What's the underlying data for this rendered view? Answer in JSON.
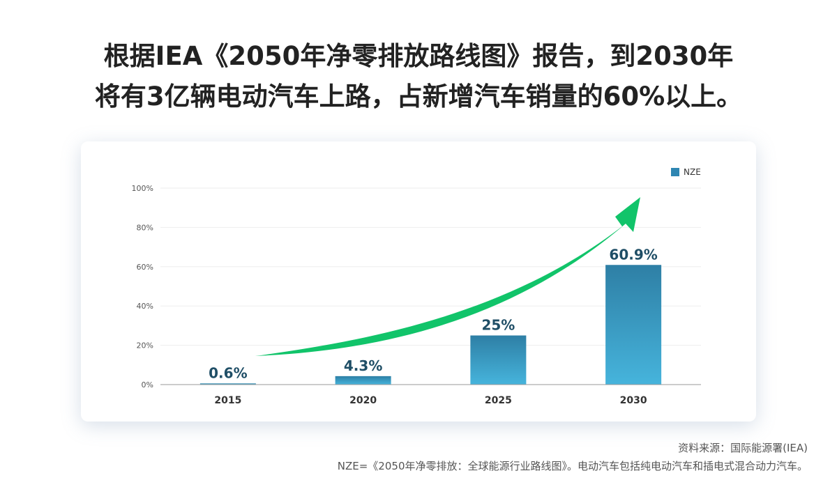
{
  "headline": {
    "line1": "根据IEA《2050年净零排放路线图》报告，到2030年",
    "line2": "将有3亿辆电动汽车上路，占新增汽车销量的60%以上。"
  },
  "chart_data": {
    "type": "bar",
    "categories": [
      "2015",
      "2020",
      "2025",
      "2030"
    ],
    "series": [
      {
        "name": "NZE",
        "values": [
          0.6,
          4.3,
          25,
          60.9
        ]
      }
    ],
    "data_labels": [
      "0.6%",
      "4.3%",
      "25%",
      "60.9%"
    ],
    "y_ticks": [
      0,
      20,
      40,
      60,
      80,
      100
    ],
    "y_tick_labels": [
      "0%",
      "20%",
      "40%",
      "60%",
      "80%",
      "100%"
    ],
    "ylim": [
      0,
      100
    ],
    "grid": true,
    "legend_position": "top-right",
    "annotation": "upward-trend-arrow",
    "colors": {
      "bar_top": "#2e7fa5",
      "bar_bottom": "#46b4dc",
      "legend_swatch": "#2e86b2",
      "data_label": "#1f4e66",
      "arrow": "#11c46a",
      "grid": "#eeeeee",
      "axis": "#999999"
    }
  },
  "footer": {
    "source": "资料来源：国际能源署(IEA)",
    "note": "NZE=《2050年净零排放：全球能源行业路线图》。电动汽车包括纯电动汽车和插电式混合动力汽车。"
  }
}
